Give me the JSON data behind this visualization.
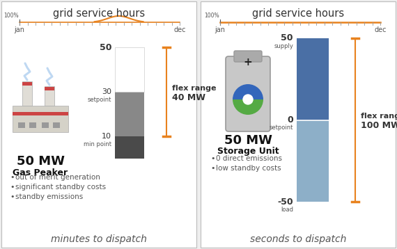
{
  "background_color": "#eeeeee",
  "orange_color": "#e8821e",
  "left_title": "grid service hours",
  "right_title": "grid service hours",
  "left_flex_range_label": "flex range",
  "left_flex_range_value": "40 MW",
  "left_mw": "50 MW",
  "left_unit_name": "Gas Peaker",
  "left_bullets": [
    "out of merit generation",
    "significant standby costs",
    "standby emissions"
  ],
  "left_dispatch": "minutes to dispatch",
  "right_flex_range_label": "flex range",
  "right_flex_range_value": "100 MW",
  "right_mw": "50 MW",
  "right_unit_name": "Storage Unit",
  "right_bullets": [
    "0 direct emissions",
    "low standby costs"
  ],
  "right_dispatch": "seconds to dispatch",
  "bar_dark_blue": "#4a6fa5",
  "bar_light_blue": "#8dafc8",
  "bar_white": "#ffffff",
  "bar_dark_gray": "#505050",
  "bar_mid_gray": "#888888",
  "divider_color": "#bbbbbb",
  "text_dark": "#333333",
  "text_mid": "#555555"
}
